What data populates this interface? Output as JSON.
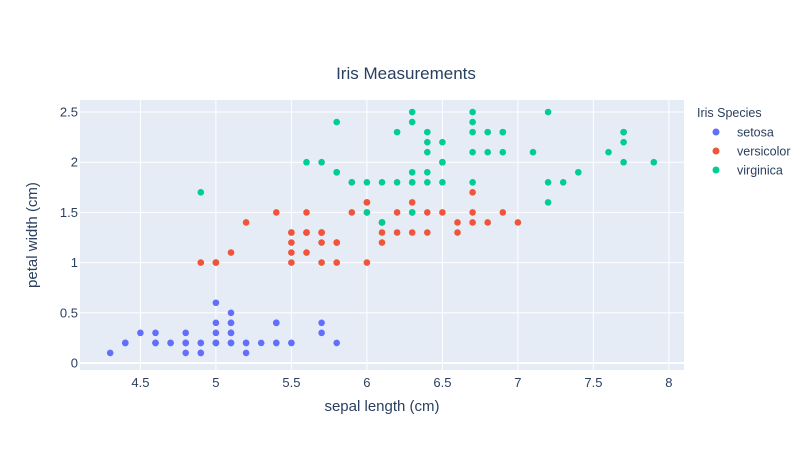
{
  "chart_data": {
    "type": "scatter",
    "title": "Iris Measurements",
    "xlabel": "sepal length (cm)",
    "ylabel": "petal width (cm)",
    "xlim": [
      4.1,
      8.1
    ],
    "ylim": [
      -0.07,
      2.62
    ],
    "xticks": [
      4.5,
      5,
      5.5,
      6,
      6.5,
      7,
      7.5,
      8
    ],
    "xtick_labels": [
      "4.5",
      "5",
      "5.5",
      "6",
      "6.5",
      "7",
      "7.5",
      "8"
    ],
    "yticks": [
      0,
      0.5,
      1,
      1.5,
      2,
      2.5
    ],
    "ytick_labels": [
      "0",
      "0.5",
      "1",
      "1.5",
      "2",
      "2.5"
    ],
    "grid": true,
    "legend": {
      "title": "Iris Species",
      "placement": "right"
    },
    "series": [
      {
        "name": "setosa",
        "color": "#636efa",
        "x": [
          5.1,
          4.9,
          4.7,
          4.6,
          5.0,
          5.4,
          4.6,
          5.0,
          4.4,
          4.9,
          5.4,
          4.8,
          4.8,
          4.3,
          5.8,
          5.7,
          5.4,
          5.1,
          5.7,
          5.1,
          5.4,
          5.1,
          4.6,
          5.1,
          4.8,
          5.0,
          5.0,
          5.2,
          5.2,
          4.7,
          4.8,
          5.4,
          5.2,
          5.5,
          4.9,
          5.0,
          5.5,
          4.9,
          4.4,
          5.1,
          5.0,
          4.5,
          4.4,
          5.0,
          5.1,
          4.8,
          5.1,
          4.6,
          5.3,
          5.0
        ],
        "y": [
          0.2,
          0.2,
          0.2,
          0.2,
          0.2,
          0.4,
          0.3,
          0.2,
          0.2,
          0.1,
          0.2,
          0.2,
          0.1,
          0.1,
          0.2,
          0.4,
          0.4,
          0.3,
          0.3,
          0.3,
          0.2,
          0.4,
          0.2,
          0.5,
          0.2,
          0.2,
          0.4,
          0.2,
          0.2,
          0.2,
          0.2,
          0.4,
          0.1,
          0.2,
          0.2,
          0.2,
          0.2,
          0.1,
          0.2,
          0.2,
          0.3,
          0.3,
          0.2,
          0.6,
          0.4,
          0.3,
          0.2,
          0.2,
          0.2,
          0.2
        ]
      },
      {
        "name": "versicolor",
        "color": "#ef553b",
        "x": [
          7.0,
          6.4,
          6.9,
          5.5,
          6.5,
          5.7,
          6.3,
          4.9,
          6.6,
          5.2,
          5.0,
          5.9,
          6.0,
          6.1,
          5.6,
          6.7,
          5.6,
          5.8,
          6.2,
          5.6,
          5.9,
          6.1,
          6.3,
          6.1,
          6.4,
          6.6,
          6.8,
          6.7,
          6.0,
          5.7,
          5.5,
          5.5,
          5.8,
          6.0,
          5.4,
          6.0,
          6.7,
          6.3,
          5.6,
          5.5,
          5.5,
          6.1,
          5.8,
          5.0,
          5.6,
          5.7,
          5.7,
          6.2,
          5.1,
          5.7
        ],
        "y": [
          1.4,
          1.5,
          1.5,
          1.3,
          1.5,
          1.3,
          1.6,
          1.0,
          1.3,
          1.4,
          1.0,
          1.5,
          1.0,
          1.4,
          1.3,
          1.4,
          1.5,
          1.0,
          1.5,
          1.1,
          1.8,
          1.3,
          1.5,
          1.2,
          1.3,
          1.4,
          1.4,
          1.7,
          1.5,
          1.0,
          1.1,
          1.0,
          1.2,
          1.6,
          1.5,
          1.6,
          1.5,
          1.3,
          1.3,
          1.3,
          1.2,
          1.4,
          1.2,
          1.0,
          1.3,
          1.2,
          1.3,
          1.3,
          1.1,
          1.3
        ]
      },
      {
        "name": "virginica",
        "color": "#00cc96",
        "x": [
          6.3,
          5.8,
          7.1,
          6.3,
          6.5,
          7.6,
          4.9,
          7.3,
          6.7,
          7.2,
          6.5,
          6.4,
          6.8,
          5.7,
          5.8,
          6.4,
          6.5,
          7.7,
          7.7,
          6.0,
          6.9,
          5.6,
          7.7,
          6.3,
          6.7,
          7.2,
          6.2,
          6.1,
          6.4,
          7.2,
          7.4,
          7.9,
          6.4,
          6.3,
          6.1,
          7.7,
          6.3,
          6.4,
          6.0,
          6.9,
          6.7,
          6.9,
          5.8,
          6.8,
          6.7,
          6.7,
          6.3,
          6.5,
          6.2,
          5.9
        ],
        "y": [
          2.5,
          1.9,
          2.1,
          1.8,
          2.2,
          2.1,
          1.7,
          1.8,
          1.8,
          2.5,
          2.0,
          1.9,
          2.1,
          2.0,
          2.4,
          2.3,
          1.8,
          2.2,
          2.3,
          1.5,
          2.3,
          2.0,
          2.0,
          1.8,
          2.1,
          1.8,
          1.8,
          1.8,
          2.1,
          1.6,
          1.9,
          2.0,
          2.2,
          1.5,
          1.4,
          2.3,
          2.4,
          1.8,
          1.8,
          2.1,
          2.4,
          2.3,
          1.9,
          2.3,
          2.5,
          2.3,
          1.9,
          2.0,
          2.3,
          1.8
        ]
      }
    ]
  }
}
